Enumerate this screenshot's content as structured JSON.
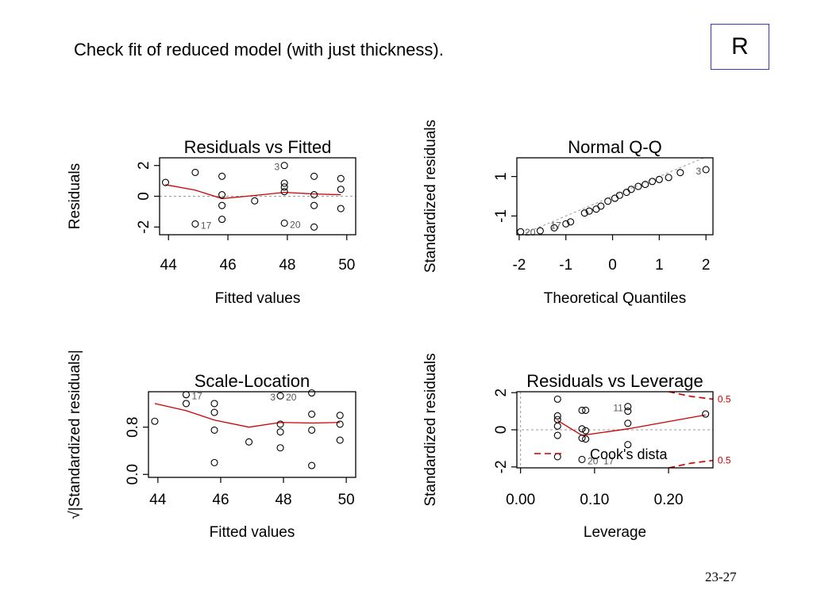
{
  "slide": {
    "title": "Check fit of reduced model (with just thickness).",
    "badge": "R",
    "page_number": "23-27"
  },
  "colors": {
    "points": "#000000",
    "smooth_line": "#cc0000",
    "reference_line": "#999999",
    "cook_line": "#cc0000",
    "label_grey": "#555555"
  },
  "chart_data": [
    {
      "type": "scatter",
      "title": "Residuals vs Fitted",
      "xlabel": "Fitted values",
      "ylabel": "Residuals",
      "xlim": [
        43.7,
        50.3
      ],
      "ylim": [
        -2.5,
        2.5
      ],
      "xticks": [
        44,
        46,
        48,
        50
      ],
      "yticks": [
        -2,
        0,
        2
      ],
      "ref_y": 0,
      "points": [
        {
          "x": 43.9,
          "y": 0.9
        },
        {
          "x": 44.9,
          "y": 1.55
        },
        {
          "x": 44.9,
          "y": -1.8
        },
        {
          "x": 45.8,
          "y": 1.3
        },
        {
          "x": 45.8,
          "y": 0.1
        },
        {
          "x": 45.8,
          "y": -0.6
        },
        {
          "x": 45.8,
          "y": -1.5
        },
        {
          "x": 46.9,
          "y": -0.3
        },
        {
          "x": 47.9,
          "y": 2.0
        },
        {
          "x": 47.9,
          "y": 0.85
        },
        {
          "x": 47.9,
          "y": 0.6
        },
        {
          "x": 47.9,
          "y": 0.3
        },
        {
          "x": 47.9,
          "y": -1.75
        },
        {
          "x": 48.9,
          "y": 1.3
        },
        {
          "x": 48.9,
          "y": 0.1
        },
        {
          "x": 48.9,
          "y": -0.6
        },
        {
          "x": 48.9,
          "y": -2.0
        },
        {
          "x": 49.8,
          "y": 1.15
        },
        {
          "x": 49.8,
          "y": 0.45
        },
        {
          "x": 49.8,
          "y": -0.8
        }
      ],
      "smooth": [
        {
          "x": 43.9,
          "y": 0.75
        },
        {
          "x": 44.9,
          "y": 0.4
        },
        {
          "x": 45.8,
          "y": -0.15
        },
        {
          "x": 46.9,
          "y": 0.05
        },
        {
          "x": 47.9,
          "y": 0.25
        },
        {
          "x": 48.9,
          "y": 0.15
        },
        {
          "x": 49.8,
          "y": 0.1
        }
      ],
      "labels": [
        {
          "x": 47.9,
          "y": 2.0,
          "text": "3",
          "side": "left"
        },
        {
          "x": 44.9,
          "y": -1.8,
          "text": "17",
          "side": "right"
        },
        {
          "x": 47.9,
          "y": -1.75,
          "text": "20",
          "side": "right"
        }
      ]
    },
    {
      "type": "scatter",
      "title": "Normal Q-Q",
      "xlabel": "Theoretical Quantiles",
      "ylabel": "Standardized residuals",
      "xlim": [
        -2.05,
        2.15
      ],
      "ylim": [
        -1.95,
        1.95
      ],
      "xticks": [
        -2,
        -1,
        0,
        1,
        2
      ],
      "yticks": [
        -1,
        1
      ],
      "qq_line": [
        [
          -2.05,
          -2.05
        ],
        [
          2.15,
          2.15
        ]
      ],
      "points": [
        {
          "x": -1.97,
          "y": -1.8
        },
        {
          "x": -1.55,
          "y": -1.75
        },
        {
          "x": -1.25,
          "y": -1.6
        },
        {
          "x": -1.0,
          "y": -1.4
        },
        {
          "x": -0.9,
          "y": -1.3
        },
        {
          "x": -0.6,
          "y": -0.85
        },
        {
          "x": -0.5,
          "y": -0.75
        },
        {
          "x": -0.35,
          "y": -0.65
        },
        {
          "x": -0.25,
          "y": -0.5
        },
        {
          "x": -0.1,
          "y": -0.25
        },
        {
          "x": 0.05,
          "y": -0.1
        },
        {
          "x": 0.15,
          "y": 0.05
        },
        {
          "x": 0.3,
          "y": 0.2
        },
        {
          "x": 0.4,
          "y": 0.35
        },
        {
          "x": 0.55,
          "y": 0.5
        },
        {
          "x": 0.7,
          "y": 0.6
        },
        {
          "x": 0.85,
          "y": 0.75
        },
        {
          "x": 1.0,
          "y": 0.85
        },
        {
          "x": 1.2,
          "y": 0.95
        },
        {
          "x": 1.45,
          "y": 1.2
        },
        {
          "x": 2.0,
          "y": 1.35
        }
      ],
      "labels": [
        {
          "x": 2.0,
          "y": 1.35,
          "text": "3",
          "side": "left"
        },
        {
          "x": -1.55,
          "y": -1.75,
          "text": "20",
          "side": "left"
        },
        {
          "x": -1.0,
          "y": -1.4,
          "text": "17",
          "side": "left"
        }
      ]
    },
    {
      "type": "scatter",
      "title": "Scale-Location",
      "xlabel": "Fitted values",
      "ylabel": "√|Standardized residuals|",
      "xlim": [
        43.7,
        50.3
      ],
      "ylim": [
        -0.05,
        1.4
      ],
      "xticks": [
        44,
        46,
        48,
        50
      ],
      "yticks": [
        0.0,
        0.8
      ],
      "ytick_labels": [
        "0.0",
        "0.8"
      ],
      "points": [
        {
          "x": 43.9,
          "y": 0.9
        },
        {
          "x": 44.9,
          "y": 1.35
        },
        {
          "x": 44.9,
          "y": 1.2
        },
        {
          "x": 45.8,
          "y": 1.2
        },
        {
          "x": 45.8,
          "y": 1.05
        },
        {
          "x": 45.8,
          "y": 0.75
        },
        {
          "x": 45.8,
          "y": 0.2
        },
        {
          "x": 46.9,
          "y": 0.55
        },
        {
          "x": 47.9,
          "y": 1.33
        },
        {
          "x": 47.9,
          "y": 0.85
        },
        {
          "x": 47.9,
          "y": 0.72
        },
        {
          "x": 47.9,
          "y": 0.45
        },
        {
          "x": 48.9,
          "y": 1.38
        },
        {
          "x": 48.9,
          "y": 1.02
        },
        {
          "x": 48.9,
          "y": 0.75
        },
        {
          "x": 48.9,
          "y": 0.15
        },
        {
          "x": 49.8,
          "y": 1.0
        },
        {
          "x": 49.8,
          "y": 0.85
        },
        {
          "x": 49.8,
          "y": 0.58
        }
      ],
      "smooth": [
        {
          "x": 43.9,
          "y": 1.2
        },
        {
          "x": 44.9,
          "y": 1.08
        },
        {
          "x": 45.8,
          "y": 0.92
        },
        {
          "x": 46.9,
          "y": 0.8
        },
        {
          "x": 47.9,
          "y": 0.88
        },
        {
          "x": 48.9,
          "y": 0.87
        },
        {
          "x": 49.8,
          "y": 0.88
        }
      ],
      "labels": [
        {
          "x": 44.9,
          "y": 1.35,
          "text": "17",
          "side": "right"
        },
        {
          "x": 47.9,
          "y": 1.33,
          "text": "3",
          "side": "left"
        },
        {
          "x": 47.9,
          "y": 1.33,
          "text": "20",
          "side": "right"
        }
      ]
    },
    {
      "type": "scatter",
      "title": "Residuals vs Leverage",
      "xlabel": "Leverage",
      "ylabel": "Standardized residuals",
      "xlim": [
        -0.005,
        0.26
      ],
      "ylim": [
        -2.05,
        2.05
      ],
      "xticks": [
        0.0,
        0.1,
        0.2
      ],
      "xtick_labels": [
        "0.00",
        "0.10",
        "0.20"
      ],
      "yticks": [
        -2,
        0,
        2
      ],
      "ref_y": 0,
      "ref_x": 0,
      "points": [
        {
          "x": 0.05,
          "y": 1.65
        },
        {
          "x": 0.05,
          "y": 0.75
        },
        {
          "x": 0.05,
          "y": 0.55
        },
        {
          "x": 0.05,
          "y": 0.2
        },
        {
          "x": 0.05,
          "y": -0.3
        },
        {
          "x": 0.05,
          "y": -1.45
        },
        {
          "x": 0.083,
          "y": 1.05
        },
        {
          "x": 0.088,
          "y": 1.05
        },
        {
          "x": 0.083,
          "y": 0.05
        },
        {
          "x": 0.088,
          "y": -0.05
        },
        {
          "x": 0.083,
          "y": -0.45
        },
        {
          "x": 0.088,
          "y": -0.5
        },
        {
          "x": 0.083,
          "y": -1.6
        },
        {
          "x": 0.145,
          "y": 1.25
        },
        {
          "x": 0.145,
          "y": 1.0
        },
        {
          "x": 0.145,
          "y": 0.35
        },
        {
          "x": 0.145,
          "y": -0.8
        },
        {
          "x": 0.25,
          "y": 0.85
        }
      ],
      "smooth": [
        {
          "x": 0.05,
          "y": 0.5
        },
        {
          "x": 0.083,
          "y": -0.3
        },
        {
          "x": 0.145,
          "y": 0.05
        },
        {
          "x": 0.25,
          "y": 0.8
        }
      ],
      "cook_upper": [
        [
          0.2,
          2.05
        ],
        [
          0.23,
          1.8
        ],
        [
          0.26,
          1.65
        ]
      ],
      "cook_lower": [
        [
          0.2,
          -2.05
        ],
        [
          0.23,
          -1.8
        ],
        [
          0.26,
          -1.65
        ]
      ],
      "cook_labels": [
        {
          "x": 0.262,
          "y": 1.65,
          "text": "0.5"
        },
        {
          "x": 0.262,
          "y": -1.65,
          "text": "0.5"
        }
      ],
      "labels": [
        {
          "x": 0.145,
          "y": 1.25,
          "text": "11",
          "side": "left"
        },
        {
          "x": 0.083,
          "y": -1.6,
          "text": "20",
          "side": "right"
        },
        {
          "x": 0.083,
          "y": -1.6,
          "text": "17",
          "side": "far-right"
        }
      ],
      "legend": {
        "text": "Cook's dista",
        "placement": "bottom-left"
      }
    }
  ]
}
